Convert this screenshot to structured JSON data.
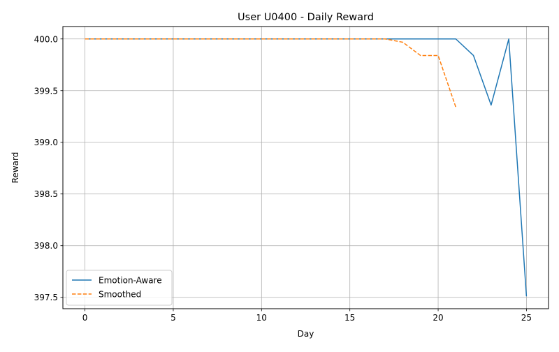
{
  "chart_data": {
    "type": "line",
    "title": "User U0400 - Daily Reward",
    "xlabel": "Day",
    "ylabel": "Reward",
    "xlim": [
      -1.25,
      26.25
    ],
    "ylim": [
      397.39,
      400.12
    ],
    "xticks": [
      0,
      5,
      10,
      15,
      20,
      25
    ],
    "yticks": [
      397.5,
      398.0,
      398.5,
      399.0,
      399.5,
      400.0
    ],
    "ytick_labels": [
      "397.5",
      "398.0",
      "398.5",
      "399.0",
      "399.5",
      "400.0"
    ],
    "grid": true,
    "legend_position": "lower-left",
    "series": [
      {
        "name": "Emotion-Aware",
        "color": "#1f77b4",
        "style": "solid",
        "x": [
          0,
          1,
          2,
          3,
          4,
          5,
          6,
          7,
          8,
          9,
          10,
          11,
          12,
          13,
          14,
          15,
          16,
          17,
          18,
          19,
          20,
          21,
          22,
          23,
          24,
          25
        ],
        "y": [
          400,
          400,
          400,
          400,
          400,
          400,
          400,
          400,
          400,
          400,
          400,
          400,
          400,
          400,
          400,
          400,
          400,
          400,
          400,
          400,
          400,
          400,
          399.84,
          399.36,
          400,
          397.51
        ]
      },
      {
        "name": "Smoothed",
        "color": "#ff7f0e",
        "style": "dashed",
        "x": [
          0,
          1,
          2,
          3,
          4,
          5,
          6,
          7,
          8,
          9,
          10,
          11,
          12,
          13,
          14,
          15,
          16,
          17,
          18,
          19,
          20,
          21
        ],
        "y": [
          400,
          400,
          400,
          400,
          400,
          400,
          400,
          400,
          400,
          400,
          400,
          400,
          400,
          400,
          400,
          400,
          400,
          400,
          399.968,
          399.84,
          399.84,
          399.34
        ]
      }
    ]
  }
}
